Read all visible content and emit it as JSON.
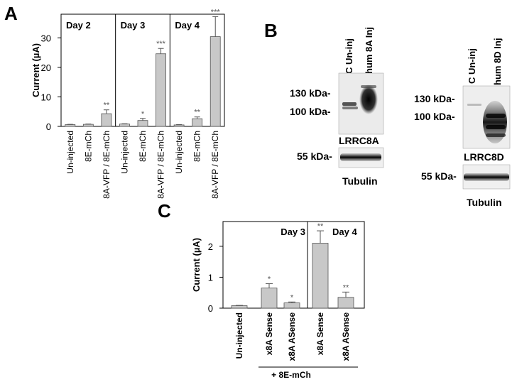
{
  "panels": {
    "a_letter": "A",
    "b_letter": "B",
    "c_letter": "C"
  },
  "colors": {
    "bar_fill": "#c8c8c8",
    "bar_stroke": "#555555",
    "axis": "#000000",
    "significance": "#555555"
  },
  "chart_data": [
    {
      "id": "A",
      "type": "bar",
      "ylabel": "Current (µA)",
      "ylim": [
        0,
        38
      ],
      "yticks": [
        0,
        10,
        20,
        30
      ],
      "grid": false,
      "groups": [
        {
          "label": "Day 2",
          "categories": [
            "Un-injected",
            "8E-mCh",
            "8A-VFP / 8E-mCh"
          ],
          "values": [
            0.6,
            0.7,
            4.3
          ],
          "errors": [
            0.1,
            0.1,
            1.3
          ],
          "significance": [
            "",
            "",
            "**"
          ]
        },
        {
          "label": "Day 3",
          "categories": [
            "Un-injected",
            "8E-mCh",
            "8A-VFP / 8E-mCh"
          ],
          "values": [
            0.8,
            2.0,
            24.6
          ],
          "errors": [
            0.1,
            0.7,
            1.8
          ],
          "significance": [
            "",
            "*",
            "***"
          ]
        },
        {
          "label": "Day 4",
          "categories": [
            "Un-injected",
            "8E-mCh",
            "8A-VFP / 8E-mCh"
          ],
          "values": [
            0.5,
            2.6,
            30.4
          ],
          "errors": [
            0.1,
            0.6,
            6.8
          ],
          "significance": [
            "",
            "**",
            "***"
          ]
        }
      ]
    },
    {
      "id": "C",
      "type": "bar",
      "ylabel": "Current (µA)",
      "ylim": [
        0,
        2.8
      ],
      "yticks": [
        0,
        1,
        2
      ],
      "grid": false,
      "categories": [
        "Un-injected",
        "x8A Sense",
        "x8A ASense",
        "x8A Sense",
        "x8A ASense"
      ],
      "values": [
        0.08,
        0.65,
        0.17,
        2.1,
        0.35
      ],
      "errors": [
        0.01,
        0.14,
        0.03,
        0.4,
        0.17
      ],
      "significance": [
        "",
        "*",
        "*",
        "**",
        "**"
      ],
      "group_labels": [
        "Day 3",
        "Day 4"
      ],
      "bracket_label": "+ 8E-mCh"
    }
  ],
  "blots": {
    "left": {
      "lanes": [
        "C Un-inj",
        "hum 8A Inj"
      ],
      "markers": [
        "130 kDa-",
        "100 kDa-"
      ],
      "protein": "LRRC8A",
      "loading_marker": "55 kDa-",
      "loading": "Tubulin"
    },
    "right": {
      "lanes": [
        "C Un-inj",
        "hum 8D Inj"
      ],
      "markers": [
        "130 kDa-",
        "100 kDa-"
      ],
      "protein": "LRRC8D",
      "loading_marker": "55 kDa-",
      "loading": "Tubulin"
    }
  }
}
